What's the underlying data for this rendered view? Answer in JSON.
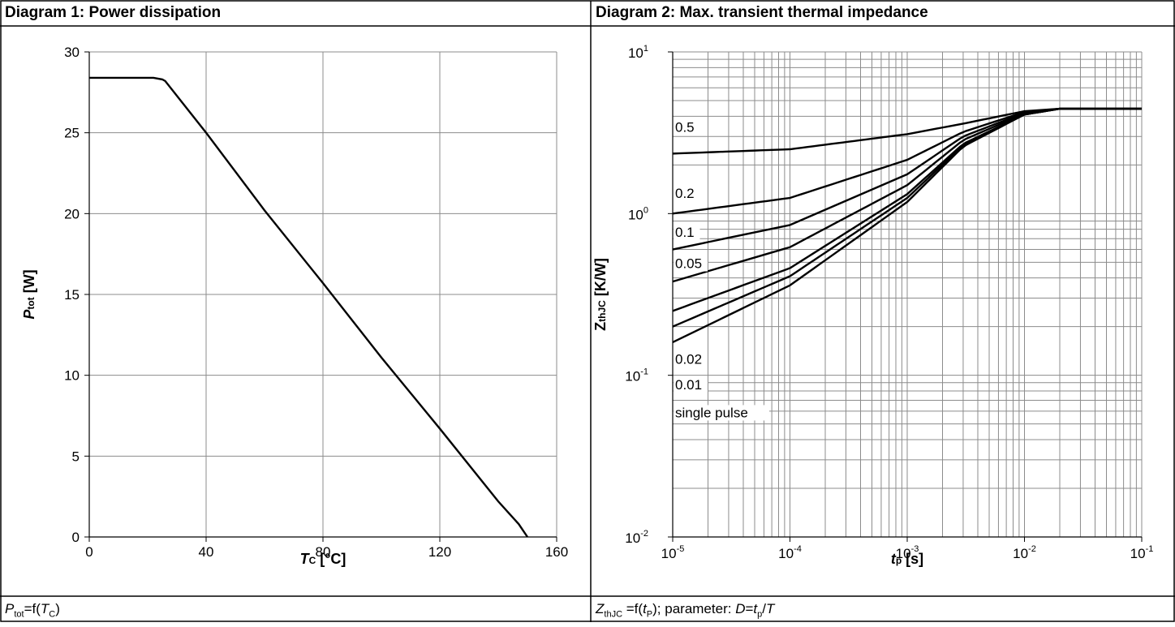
{
  "panels": {
    "left": {
      "title": "Diagram 1: Power dissipation",
      "caption": {
        "p": "P",
        "p_sub": "tot",
        "mid": "=f(",
        "t": "T",
        "t_sub": "C",
        "end": ")"
      }
    },
    "right": {
      "title": "Diagram 2: Max. transient thermal impedance",
      "caption": {
        "z": "Z",
        "z_sub": "thJC",
        "mid": " =f(",
        "t": "t",
        "t_sub": "P",
        "param": "); parameter: ",
        "d": "D",
        "eq": "=",
        "tp": "t",
        "tp_sub": "p",
        "slash": "/",
        "T": "T"
      }
    }
  },
  "chart_data": [
    {
      "type": "line",
      "xlabel": "T",
      "xlabel_sub": "C",
      "xlabel_unit": " [°C]",
      "ylabel": "P",
      "ylabel_sub": "tot",
      "ylabel_unit": " [W]",
      "xlim": [
        0,
        160
      ],
      "ylim": [
        0,
        30
      ],
      "xticks": [
        0,
        40,
        80,
        120,
        160
      ],
      "yticks": [
        0,
        5,
        10,
        15,
        20,
        25,
        30
      ],
      "grid": true,
      "series": [
        {
          "x": [
            0,
            22,
            25,
            26,
            40,
            60,
            80,
            100,
            120,
            140,
            147,
            150
          ],
          "y": [
            28.4,
            28.4,
            28.3,
            28.2,
            25.0,
            20.2,
            15.7,
            11.1,
            6.7,
            2.2,
            0.8,
            0.0
          ]
        }
      ]
    },
    {
      "type": "line",
      "xscale": "log",
      "yscale": "log",
      "xlabel": "t",
      "xlabel_sub": "p",
      "xlabel_unit": " [s]",
      "ylabel": "Z",
      "ylabel_sub": "thJC",
      "ylabel_unit": " [K/W]",
      "xlim": [
        1e-05,
        0.1
      ],
      "ylim": [
        0.01,
        10
      ],
      "xticks": [
        {
          "base": "10",
          "exp": "-5"
        },
        {
          "base": "10",
          "exp": "-4"
        },
        {
          "base": "10",
          "exp": "-3"
        },
        {
          "base": "10",
          "exp": "-2"
        },
        {
          "base": "10",
          "exp": "-1"
        }
      ],
      "yticks": [
        {
          "base": "10",
          "exp": "-2"
        },
        {
          "base": "10",
          "exp": "-1"
        },
        {
          "base": "10",
          "exp": "0"
        },
        {
          "base": "10",
          "exp": "1"
        }
      ],
      "grid": true,
      "series": [
        {
          "name": "0.5",
          "x": [
            1e-05,
            0.0001,
            0.001,
            0.003,
            0.01,
            0.02,
            0.1
          ],
          "y": [
            2.35,
            2.5,
            3.1,
            3.6,
            4.3,
            4.45,
            4.45
          ]
        },
        {
          "name": "0.2",
          "x": [
            1e-05,
            0.0001,
            0.001,
            0.003,
            0.01,
            0.02,
            0.1
          ],
          "y": [
            1.0,
            1.25,
            2.15,
            3.2,
            4.25,
            4.45,
            4.45
          ]
        },
        {
          "name": "0.1",
          "x": [
            1e-05,
            0.0001,
            0.001,
            0.003,
            0.01,
            0.02,
            0.1
          ],
          "y": [
            0.6,
            0.85,
            1.75,
            3.0,
            4.2,
            4.45,
            4.45
          ]
        },
        {
          "name": "0.05",
          "x": [
            1e-05,
            0.0001,
            0.001,
            0.003,
            0.01,
            0.02,
            0.1
          ],
          "y": [
            0.38,
            0.62,
            1.5,
            2.85,
            4.15,
            4.45,
            4.45
          ]
        },
        {
          "name": "0.02",
          "x": [
            1e-05,
            0.0001,
            0.001,
            0.003,
            0.01,
            0.02,
            0.1
          ],
          "y": [
            0.25,
            0.46,
            1.32,
            2.7,
            4.1,
            4.45,
            4.45
          ]
        },
        {
          "name": "0.01",
          "x": [
            1e-05,
            0.0001,
            0.001,
            0.003,
            0.01,
            0.02,
            0.1
          ],
          "y": [
            0.2,
            0.41,
            1.25,
            2.65,
            4.1,
            4.45,
            4.45
          ]
        },
        {
          "name": "single pulse",
          "x": [
            1e-05,
            0.0001,
            0.001,
            0.003,
            0.01,
            0.02,
            0.1
          ],
          "y": [
            0.16,
            0.36,
            1.18,
            2.6,
            4.1,
            4.45,
            4.45
          ]
        }
      ],
      "annotations": [
        "0.5",
        "0.2",
        "0.1",
        "0.05",
        "0.02",
        "0.01",
        "single pulse"
      ]
    }
  ]
}
